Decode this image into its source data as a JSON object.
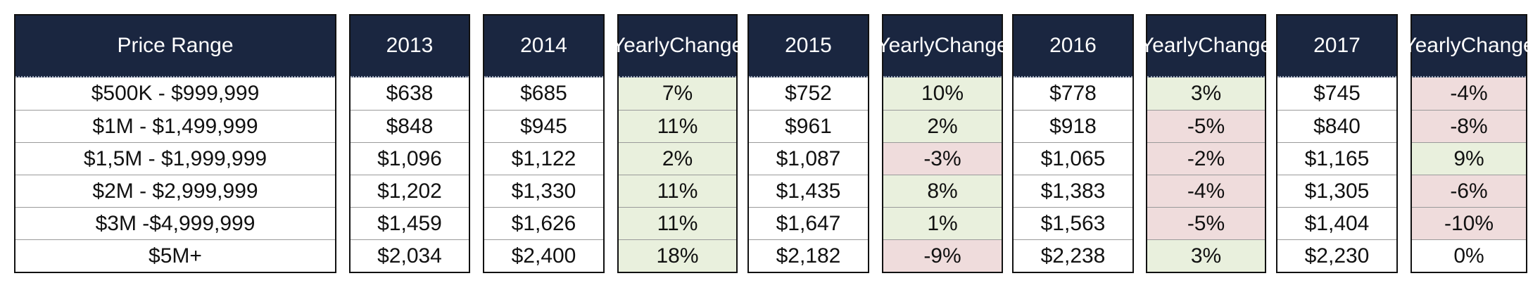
{
  "chart_data": {
    "type": "table",
    "columns": [
      {
        "key": "price_range",
        "header": "Price Range"
      },
      {
        "key": "y2013",
        "header": "2013"
      },
      {
        "key": "y2014",
        "header": "2014"
      },
      {
        "key": "chg2014",
        "header": "Yearly Change"
      },
      {
        "key": "y2015",
        "header": "2015"
      },
      {
        "key": "chg2015",
        "header": "Yearly Change"
      },
      {
        "key": "y2016",
        "header": "2016"
      },
      {
        "key": "chg2016",
        "header": "Yearly Change"
      },
      {
        "key": "y2017",
        "header": "2017"
      },
      {
        "key": "chg2017",
        "header": "Yearly Change"
      }
    ],
    "rows": [
      [
        "$500K - $999,999",
        "$638",
        "$685",
        "7%",
        "$752",
        "10%",
        "$778",
        "3%",
        "$745",
        "-4%"
      ],
      [
        "$1M - $1,499,999",
        "$848",
        "$945",
        "11%",
        "$961",
        "2%",
        "$918",
        "-5%",
        "$840",
        "-8%"
      ],
      [
        "$1,5M - $1,999,999",
        "$1,096",
        "$1,122",
        "2%",
        "$1,087",
        "-3%",
        "$1,065",
        "-2%",
        "$1,165",
        "9%"
      ],
      [
        "$2M - $2,999,999",
        "$1,202",
        "$1,330",
        "11%",
        "$1,435",
        "8%",
        "$1,383",
        "-4%",
        "$1,305",
        "-6%"
      ],
      [
        "$3M -$4,999,999",
        "$1,459",
        "$1,626",
        "11%",
        "$1,647",
        "1%",
        "$1,563",
        "-5%",
        "$1,404",
        "-10%"
      ],
      [
        "$5M+",
        "$2,034",
        "$2,400",
        "18%",
        "$2,182",
        "-9%",
        "$2,238",
        "3%",
        "$2,230",
        "0%"
      ]
    ]
  },
  "colors": {
    "header_bg": "#1a2640",
    "header_text": "#ffffff",
    "positive_bg": "#e9f0dd",
    "negative_bg": "#efdcdc"
  }
}
